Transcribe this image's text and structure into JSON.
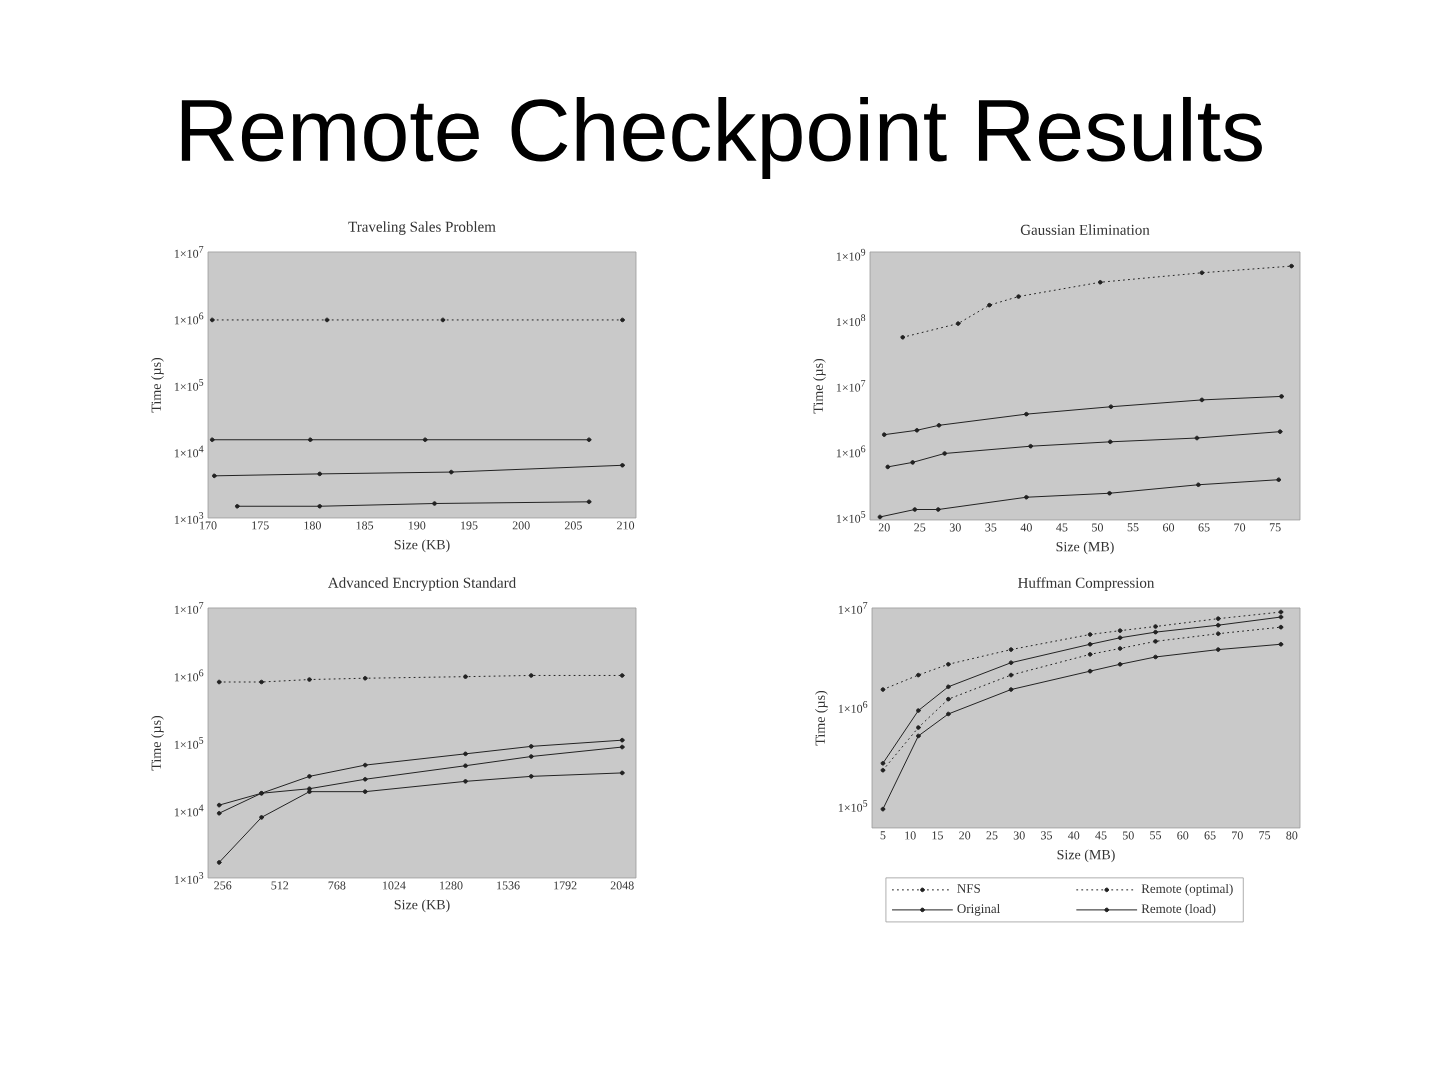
{
  "chart_data": [
    {
      "type": "other",
      "title": "Remote Checkpoint Results"
    },
    {
      "type": "line",
      "title": "Traveling Sales Problem",
      "xlabel": "Size (KB)",
      "ylabel": "Time (µs)",
      "log": "y",
      "marker": "circle",
      "xlim": [
        170,
        211
      ],
      "xticks": [
        170,
        175,
        180,
        185,
        190,
        195,
        200,
        205,
        210
      ],
      "ylim": [
        1000,
        10000000
      ],
      "yticks": [
        {
          "value": 1000,
          "label": "1×10$^{3}$"
        },
        {
          "value": 10000,
          "label": "1×10$^{4}$"
        },
        {
          "value": 100000,
          "label": "1×10$^{5}$"
        },
        {
          "value": 1000000,
          "label": "1×10$^{6}$"
        },
        {
          "value": 10000000,
          "label": "1×10$^{7}$"
        }
      ],
      "series": [
        {
          "color": "#222222",
          "line_style": "dotted",
          "x": [
            170.4,
            181.4,
            192.5,
            209.7
          ],
          "values": [
            950000,
            950000,
            950000,
            950000
          ]
        },
        {
          "color": "#222222",
          "line_style": "solid",
          "x": [
            170.6,
            180.7,
            193.3,
            209.7
          ],
          "values": [
            4300,
            4600,
            4900,
            6200
          ]
        },
        {
          "color": "#222222",
          "line_style": "solid",
          "x": [
            172.8,
            180.7,
            191.7,
            206.5
          ],
          "values": [
            1500,
            1500,
            1650,
            1750
          ]
        },
        {
          "color": "#222222",
          "line_style": "solid",
          "x": [
            170.4,
            179.8,
            190.8,
            206.5
          ],
          "values": [
            15000,
            15000,
            15000,
            15000
          ]
        }
      ]
    },
    {
      "type": "line",
      "title": "Gaussian Elimination",
      "xlabel": "Size (MB)",
      "ylabel": "Time (µs)",
      "log": "y",
      "marker": "circle",
      "xlim": [
        18,
        78.5
      ],
      "xticks": [
        20,
        25,
        30,
        35,
        40,
        45,
        50,
        55,
        60,
        65,
        70,
        75
      ],
      "ylim": [
        90000,
        1100000000
      ],
      "yticks": [
        {
          "value": 100000,
          "label": "1×10$^{5}$"
        },
        {
          "value": 1000000,
          "label": "1×10$^{6}$"
        },
        {
          "value": 10000000,
          "label": "1×10$^{7}$"
        },
        {
          "value": 100000000,
          "label": "1×10$^{8}$"
        },
        {
          "value": 1000000000,
          "label": "1×10$^{9}$"
        }
      ],
      "series": [
        {
          "color": "#222222",
          "line_style": "dotted",
          "x": [
            22.6,
            30.4,
            34.8,
            38.9,
            50.4,
            64.7,
            77.3
          ],
          "values": [
            55000000,
            89000000,
            170000000,
            230000000,
            380000000,
            530000000,
            670000000
          ]
        },
        {
          "color": "#222222",
          "line_style": "solid",
          "x": [
            20.5,
            24.0,
            28.5,
            40.6,
            51.8,
            64.0,
            75.7
          ],
          "values": [
            580000,
            680000,
            930000,
            1200000,
            1400000,
            1600000,
            2000000
          ]
        },
        {
          "color": "#222222",
          "line_style": "solid",
          "x": [
            19.4,
            24.3,
            27.6,
            40.0,
            51.7,
            64.2,
            75.5
          ],
          "values": [
            100000,
            130000,
            130000,
            200000,
            230000,
            310000,
            370000
          ]
        },
        {
          "color": "#222222",
          "line_style": "solid",
          "x": [
            20.0,
            24.6,
            27.7,
            40.0,
            51.9,
            64.7,
            75.9
          ],
          "values": [
            1800000,
            2100000,
            2500000,
            3700000,
            4800000,
            6100000,
            6900000
          ]
        }
      ]
    },
    {
      "type": "line",
      "title": "Advanced Encryption Standard",
      "xlabel": "Size (KB)",
      "ylabel": "Time (µs)",
      "log": "y",
      "marker": "circle",
      "xlim": [
        190,
        2110
      ],
      "xticks": [
        256,
        512,
        768,
        1024,
        1280,
        1536,
        1792,
        2048
      ],
      "ylim": [
        1000,
        10000000
      ],
      "yticks": [
        {
          "value": 1000,
          "label": "1×10$^{3}$"
        },
        {
          "value": 10000,
          "label": "1×10$^{4}$"
        },
        {
          "value": 100000,
          "label": "1×10$^{5}$"
        },
        {
          "value": 1000000,
          "label": "1×10$^{6}$"
        },
        {
          "value": 10000000,
          "label": "1×10$^{7}$"
        }
      ],
      "x": [
        240,
        430,
        645,
        895,
        1345,
        1640,
        2048
      ],
      "series": [
        {
          "color": "#222222",
          "line_style": "dotted",
          "values": [
            800000,
            800000,
            870000,
            910000,
            960000,
            1000000,
            1000000
          ]
        },
        {
          "color": "#222222",
          "line_style": "solid",
          "values": [
            9100,
            18000,
            21000,
            29000,
            46000,
            63000,
            87000
          ]
        },
        {
          "color": "#222222",
          "line_style": "solid",
          "values": [
            1700,
            7900,
            19000,
            19000,
            27000,
            32000,
            36000
          ]
        },
        {
          "color": "#222222",
          "line_style": "solid",
          "values": [
            12000,
            18000,
            32000,
            47000,
            69000,
            89000,
            110000
          ]
        }
      ]
    },
    {
      "type": "line",
      "title": "Huffman Compression",
      "xlabel": "Size (MB)",
      "ylabel": "Time (µs)",
      "log": "y",
      "marker": "circle",
      "legend": "bottom",
      "xlim": [
        3,
        81.5
      ],
      "xticks": [
        5,
        10,
        15,
        20,
        25,
        30,
        35,
        40,
        45,
        50,
        55,
        60,
        65,
        70,
        75,
        80
      ],
      "ylim": [
        60000,
        10000000
      ],
      "yticks": [
        {
          "value": 100000,
          "label": "1×10$^{5}$"
        },
        {
          "value": 1000000,
          "label": "1×10$^{6}$"
        },
        {
          "value": 10000000,
          "label": "1×10$^{7}$"
        }
      ],
      "x": [
        5,
        11.5,
        17,
        28.5,
        43,
        48.5,
        55,
        66.5,
        78
      ],
      "series": [
        {
          "name": "NFS",
          "color": "#222222",
          "line_style": "dotted",
          "values": [
            1500000,
            2100000,
            2700000,
            3800000,
            5400000,
            5900000,
            6500000,
            7800000,
            9100000
          ]
        },
        {
          "name": "Remote (optimal)",
          "color": "#222222",
          "line_style": "dotted",
          "values": [
            230000,
            620000,
            1200000,
            2100000,
            3400000,
            3900000,
            4600000,
            5500000,
            6400000
          ]
        },
        {
          "name": "Original",
          "color": "#222222",
          "line_style": "solid",
          "values": [
            93000,
            510000,
            850000,
            1500000,
            2300000,
            2700000,
            3200000,
            3800000,
            4300000
          ]
        },
        {
          "name": "Remote (load)",
          "color": "#222222",
          "line_style": "solid",
          "values": [
            270000,
            920000,
            1600000,
            2800000,
            4300000,
            5000000,
            5700000,
            6700000,
            8100000
          ]
        }
      ]
    }
  ]
}
